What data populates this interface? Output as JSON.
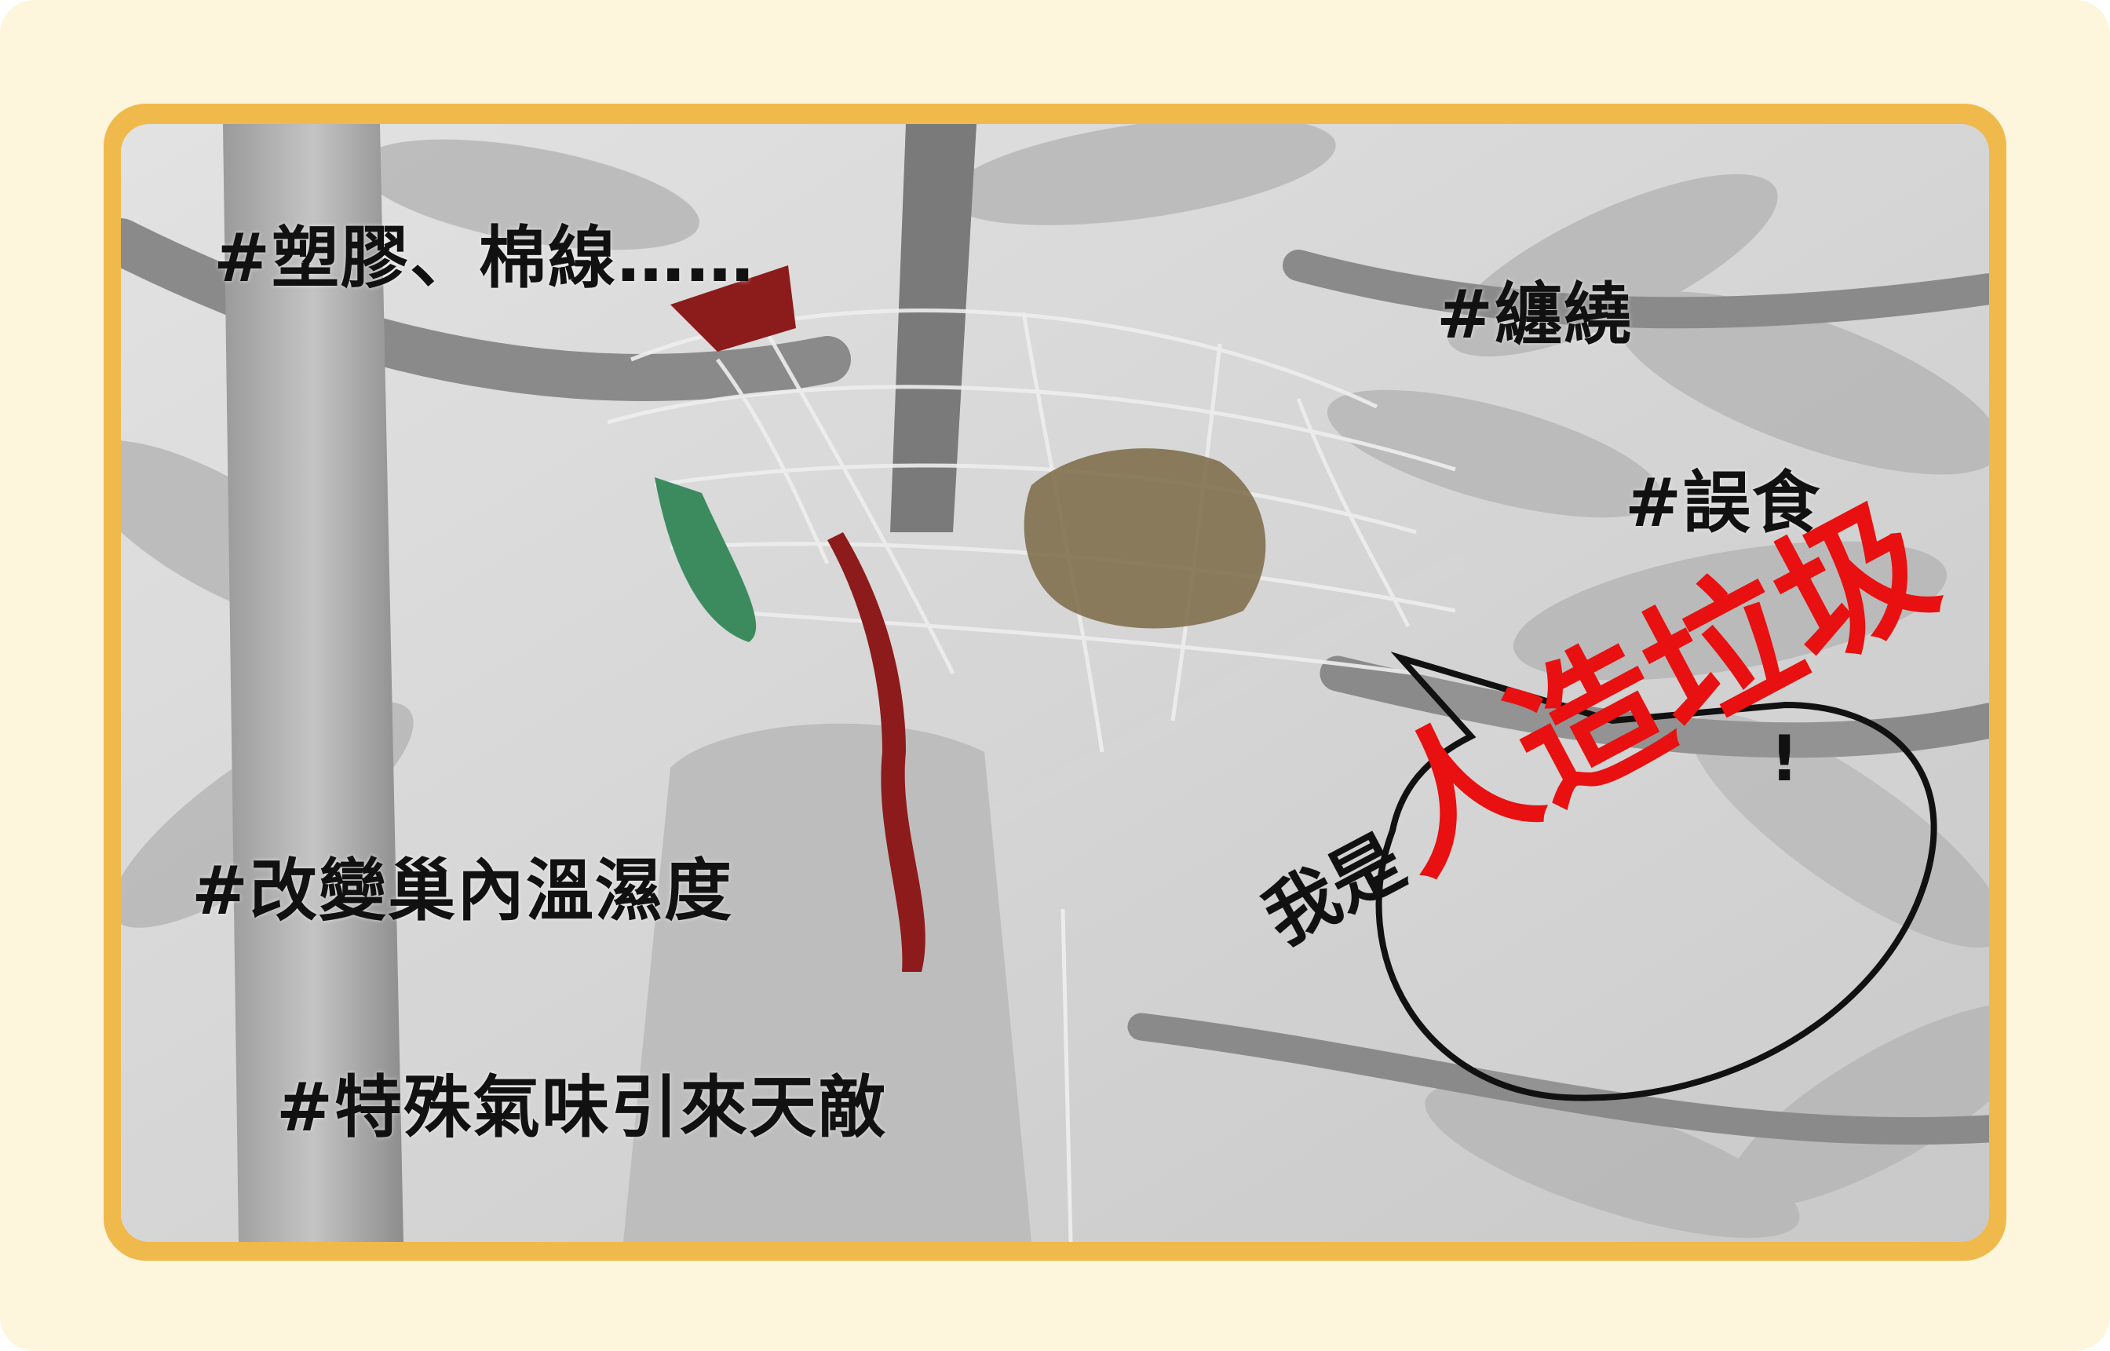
{
  "tags": {
    "plastic_cotton": "#塑膠、棉線……",
    "entangle": "#纏繞",
    "ingest": "#誤食",
    "microclimate": "#改變巢內溫濕度",
    "predator": "#特殊氣味引來天敵"
  },
  "speech_bubble": {
    "prefix": "我是",
    "emphasis": "人造垃圾",
    "suffix": "!"
  },
  "colors": {
    "page_background": "#fdf6dc",
    "frame": "#f0b94c",
    "emphasis_red": "#e81010"
  }
}
